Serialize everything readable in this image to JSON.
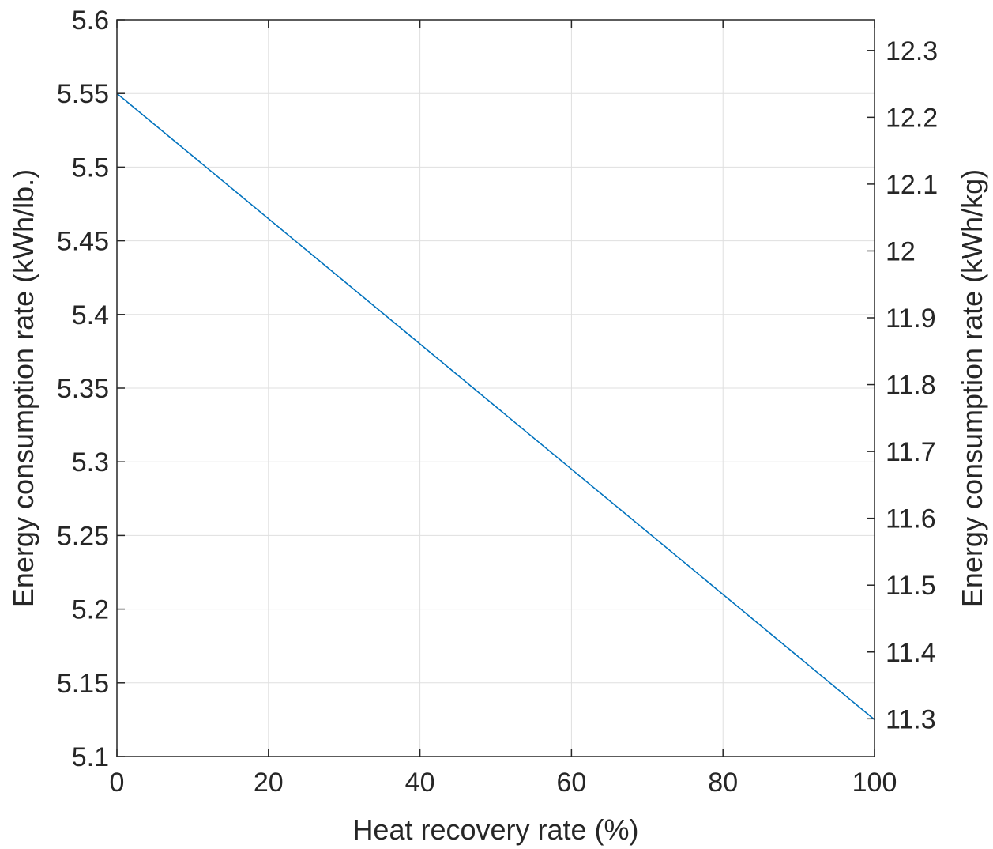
{
  "chart_data": {
    "type": "line",
    "title": "",
    "xlabel": "Heat recovery rate (%)",
    "ylabel": "Energy consumption rate (kWh/lb.)",
    "y2label": "Energy consumption rate (kWh/kg)",
    "xlim": [
      0,
      100
    ],
    "ylim": [
      5.1,
      5.6
    ],
    "y2lim": [
      11.2436,
      12.3459
    ],
    "xticks": [
      "0",
      "20",
      "40",
      "60",
      "80",
      "100"
    ],
    "yticks": [
      "5.1",
      "5.15",
      "5.2",
      "5.25",
      "5.3",
      "5.35",
      "5.4",
      "5.45",
      "5.5",
      "5.55",
      "5.6"
    ],
    "y2ticks": [
      "11.3",
      "11.4",
      "11.5",
      "11.6",
      "11.7",
      "11.8",
      "11.9",
      "12",
      "12.1",
      "12.2",
      "12.3"
    ],
    "grid": true,
    "series": [
      {
        "x": [
          0,
          100
        ],
        "y": [
          5.55,
          5.125
        ],
        "color": "#0072BD"
      }
    ]
  }
}
